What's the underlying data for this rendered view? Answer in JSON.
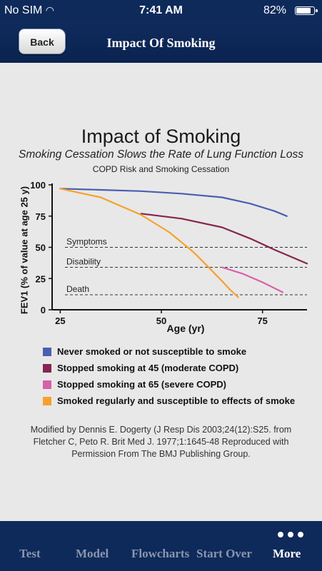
{
  "status_bar": {
    "carrier": "No SIM",
    "time": "7:41 AM",
    "battery": "82%",
    "battery_level": 0.82
  },
  "nav": {
    "back_label": "Back",
    "title": "Impact Of Smoking"
  },
  "chart_data": {
    "type": "line",
    "title": "Impact of Smoking",
    "subtitle": "Smoking Cessation Slows the Rate of Lung Function Loss",
    "subtitle2": "COPD Risk and Smoking Cessation",
    "xlabel": "Age (yr)",
    "ylabel": "FEV1 (% of value at age 25 y)",
    "xlim": [
      23,
      86
    ],
    "ylim": [
      0,
      100
    ],
    "xticks": [
      25,
      50,
      75
    ],
    "yticks": [
      0,
      25,
      50,
      75,
      100
    ],
    "thresholds": [
      {
        "label": "Symptoms",
        "y": 50
      },
      {
        "label": "Disability",
        "y": 34
      },
      {
        "label": "Death",
        "y": 12
      }
    ],
    "series": [
      {
        "name": "Never smoked or not susceptible to smoke",
        "color": "#4a5fb0",
        "x": [
          25,
          35,
          45,
          55,
          65,
          72,
          78,
          81
        ],
        "y": [
          97,
          96,
          95,
          93,
          90,
          85,
          79,
          75
        ]
      },
      {
        "name": "Stopped smoking at 45 (moderate COPD)",
        "color": "#86254e",
        "x": [
          45,
          55,
          65,
          72,
          78,
          86
        ],
        "y": [
          77,
          73,
          66,
          57,
          48,
          37
        ]
      },
      {
        "name": "Stopped smoking at 65 (severe COPD)",
        "color": "#d860a8",
        "x": [
          65,
          70,
          75,
          80
        ],
        "y": [
          34,
          29,
          22,
          14
        ]
      },
      {
        "name": "Smoked regularly and susceptible to effects of smoke",
        "color": "#f7a02c",
        "x": [
          25,
          35,
          45,
          52,
          58,
          62,
          65,
          67,
          69
        ],
        "y": [
          97,
          90,
          76,
          62,
          46,
          33,
          23,
          16,
          10
        ]
      }
    ]
  },
  "source_note": "Modified by Dennis E. Dogerty (J Resp Dis 2003;24(12):S25. from Fletcher C, Peto R. Brit Med J. 1977;1:1645-48 Reproduced with Permission From The BMJ Publishing Group.",
  "tabs": [
    {
      "label": "Test",
      "active": false
    },
    {
      "label": "Model",
      "active": false
    },
    {
      "label": "Flowcharts",
      "active": false
    },
    {
      "label": "Start Over",
      "active": false
    },
    {
      "label": "More",
      "active": true
    }
  ]
}
